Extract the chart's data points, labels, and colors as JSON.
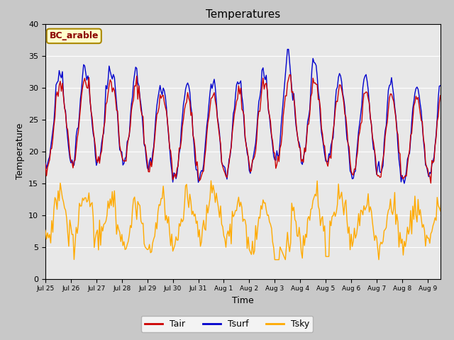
{
  "title": "Temperatures",
  "xlabel": "Time",
  "ylabel": "Temperature",
  "legend_label": "BC_arable",
  "series_labels": [
    "Tair",
    "Tsurf",
    "Tsky"
  ],
  "series_colors": [
    "#cc0000",
    "#0000cc",
    "#ffaa00"
  ],
  "ylim": [
    0,
    40
  ],
  "fig_facecolor": "#c8c8c8",
  "plot_facecolor": "#e8e8e8",
  "grid_color": "#ffffff",
  "tick_labels": [
    "Jul 25",
    "Jul 26",
    "Jul 27",
    "Jul 28",
    "Jul 29",
    "Jul 30",
    "Jul 31",
    "Aug 1",
    "Aug 2",
    "Aug 3",
    "Aug 4",
    "Aug 5",
    "Aug 6",
    "Aug 7",
    "Aug 8",
    "Aug 9"
  ]
}
